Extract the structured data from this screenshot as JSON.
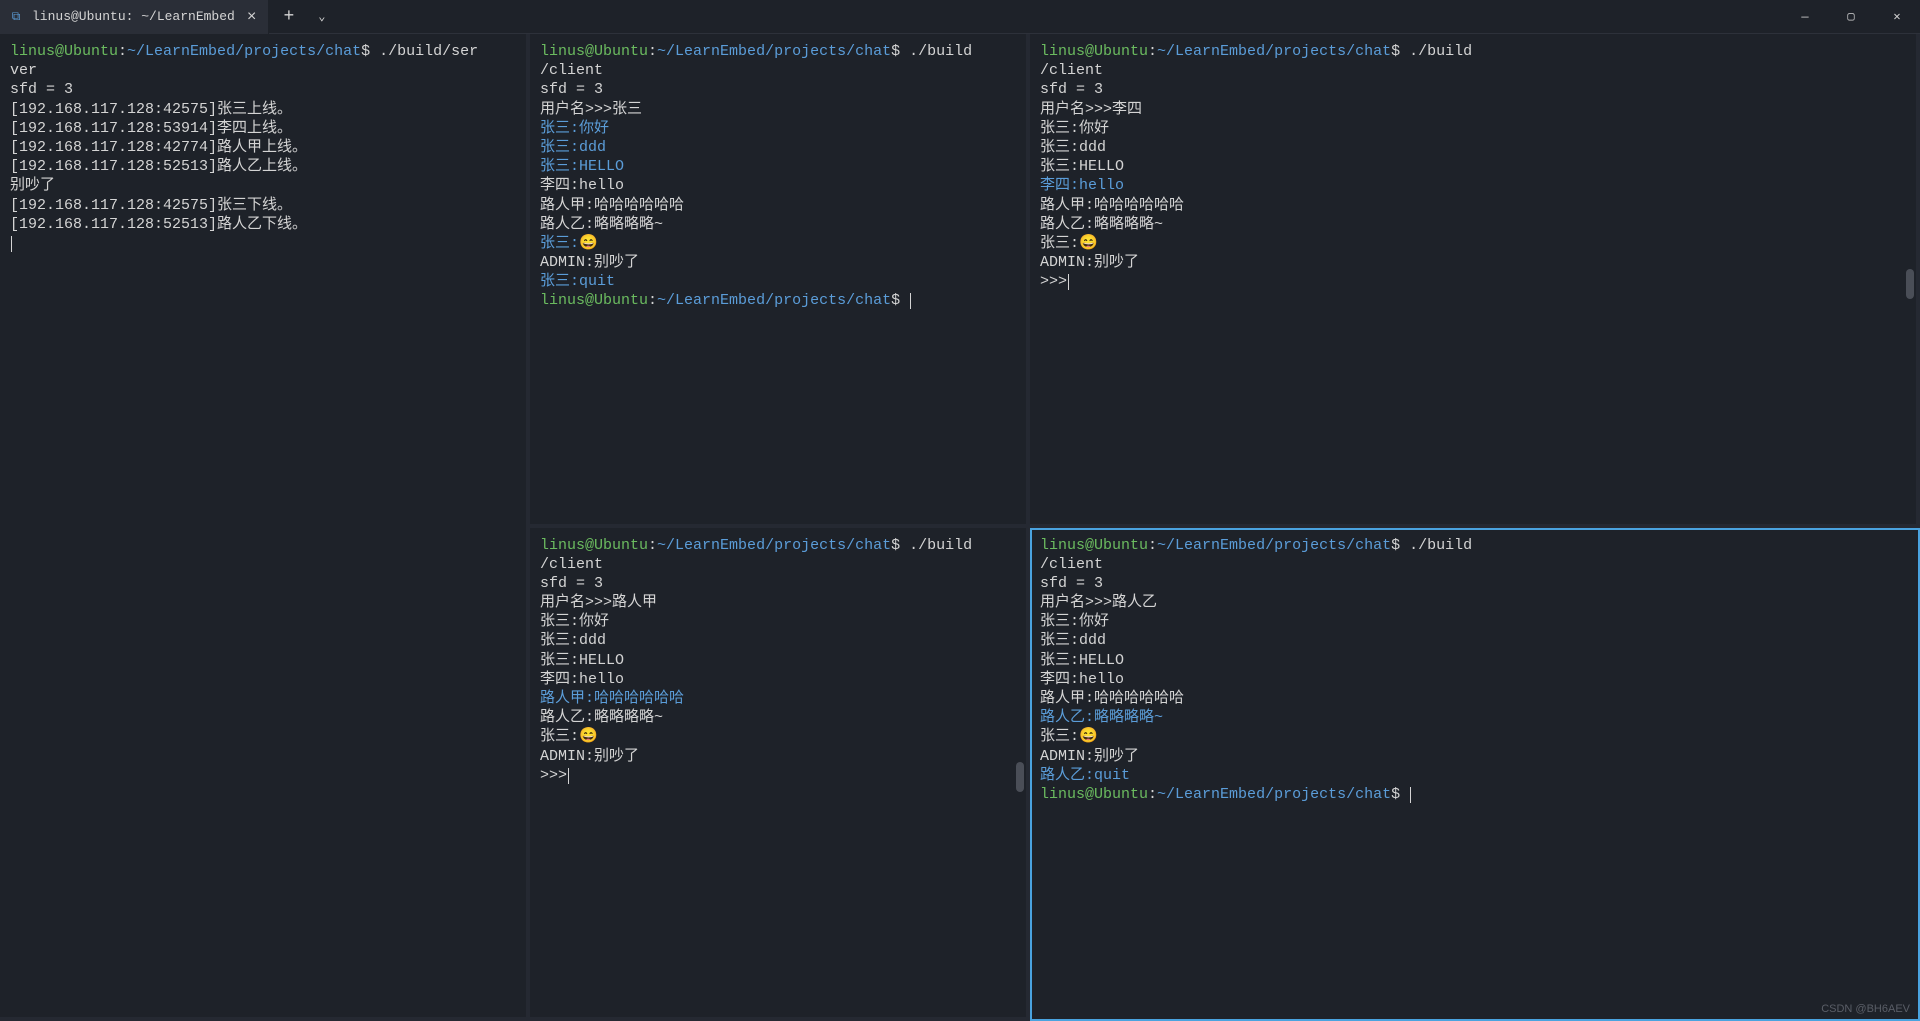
{
  "colors": {
    "bg": "#1e2229",
    "fg": "#d4d4d4",
    "prompt_user": "#6bbb5f",
    "prompt_path": "#5b9dd9",
    "self_msg": "#5b9dd9",
    "active_border": "#4aa3df",
    "scrollbar": "#4a4e57"
  },
  "titlebar": {
    "tab_title": "linus@Ubuntu: ~/LearnEmbed",
    "tab_icon": "⧉",
    "close": "×",
    "add": "+",
    "dropdown": "⌄",
    "min": "—",
    "max": "▢",
    "win_close": "✕"
  },
  "prompt": {
    "user": "linus@Ubuntu",
    "sep": ":",
    "path": "~/LearnEmbed/projects/chat",
    "dollar": "$"
  },
  "panes": [
    {
      "id": "p0",
      "command": "./build/server",
      "wrapped_cmd_split": [
        "./build/ser",
        "ver"
      ],
      "lines": [
        {
          "t": "plain",
          "text": "sfd = 3"
        },
        {
          "t": "plain",
          "text": "[192.168.117.128:42575]张三上线。"
        },
        {
          "t": "plain",
          "text": "[192.168.117.128:53914]李四上线。"
        },
        {
          "t": "plain",
          "text": "[192.168.117.128:42774]路人甲上线。"
        },
        {
          "t": "plain",
          "text": "[192.168.117.128:52513]路人乙上线。"
        },
        {
          "t": "plain",
          "text": "别吵了"
        },
        {
          "t": "plain",
          "text": "[192.168.117.128:42575]张三下线。"
        },
        {
          "t": "plain",
          "text": "[192.168.117.128:52513]路人乙下线。"
        }
      ],
      "trailing_cursor": true
    },
    {
      "id": "p1",
      "command": "./build/client",
      "wrapped_cmd_split": [
        "./build",
        "/client"
      ],
      "lines": [
        {
          "t": "plain",
          "text": "sfd = 3"
        },
        {
          "t": "plain",
          "text": "用户名>>>张三"
        },
        {
          "t": "self",
          "text": "张三:你好"
        },
        {
          "t": "self",
          "text": "张三:ddd"
        },
        {
          "t": "self",
          "text": "张三:HELLO"
        },
        {
          "t": "plain",
          "text": "李四:hello"
        },
        {
          "t": "plain",
          "text": "路人甲:哈哈哈哈哈哈"
        },
        {
          "t": "plain",
          "text": "路人乙:略略略略~"
        },
        {
          "t": "selfemoji",
          "prefix": "张三:",
          "emoji": "😄"
        },
        {
          "t": "plain",
          "text": "ADMIN:别吵了"
        },
        {
          "t": "self",
          "text": "张三:quit"
        }
      ],
      "final_prompt": true
    },
    {
      "id": "p2",
      "command": "./build/client",
      "wrapped_cmd_split": [
        "./build",
        "/client"
      ],
      "lines": [
        {
          "t": "plain",
          "text": "sfd = 3"
        },
        {
          "t": "plain",
          "text": "用户名>>>李四"
        },
        {
          "t": "plain",
          "text": "张三:你好"
        },
        {
          "t": "plain",
          "text": "张三:ddd"
        },
        {
          "t": "plain",
          "text": "张三:HELLO"
        },
        {
          "t": "self",
          "text": "李四:hello"
        },
        {
          "t": "plain",
          "text": "路人甲:哈哈哈哈哈哈"
        },
        {
          "t": "plain",
          "text": "路人乙:略略略略~"
        },
        {
          "t": "emoji",
          "prefix": "张三:",
          "emoji": "😄"
        },
        {
          "t": "plain",
          "text": "ADMIN:别吵了"
        },
        {
          "t": "input",
          "text": ">>>"
        }
      ],
      "scrollbar": true
    },
    {
      "id": "p3",
      "command": "./build/client",
      "wrapped_cmd_split": [
        "./build",
        "/client"
      ],
      "lines": [
        {
          "t": "plain",
          "text": "sfd = 3"
        },
        {
          "t": "plain",
          "text": "用户名>>>路人甲"
        },
        {
          "t": "plain",
          "text": "张三:你好"
        },
        {
          "t": "plain",
          "text": "张三:ddd"
        },
        {
          "t": "plain",
          "text": "张三:HELLO"
        },
        {
          "t": "plain",
          "text": "李四:hello"
        },
        {
          "t": "self",
          "text": "路人甲:哈哈哈哈哈哈"
        },
        {
          "t": "plain",
          "text": "路人乙:略略略略~"
        },
        {
          "t": "emoji",
          "prefix": "张三:",
          "emoji": "😄"
        },
        {
          "t": "plain",
          "text": "ADMIN:别吵了"
        },
        {
          "t": "input",
          "text": ">>>"
        }
      ],
      "scrollbar": true
    },
    {
      "id": "p4",
      "command": "./build/client",
      "wrapped_cmd_split": [
        "./build",
        "/client"
      ],
      "active": true,
      "lines": [
        {
          "t": "plain",
          "text": "sfd = 3"
        },
        {
          "t": "plain",
          "text": "用户名>>>路人乙"
        },
        {
          "t": "plain",
          "text": "张三:你好"
        },
        {
          "t": "plain",
          "text": "张三:ddd"
        },
        {
          "t": "plain",
          "text": "张三:HELLO"
        },
        {
          "t": "plain",
          "text": "李四:hello"
        },
        {
          "t": "plain",
          "text": "路人甲:哈哈哈哈哈哈"
        },
        {
          "t": "self",
          "text": "路人乙:略略略略~"
        },
        {
          "t": "emoji",
          "prefix": "张三:",
          "emoji": "😄"
        },
        {
          "t": "plain",
          "text": "ADMIN:别吵了"
        },
        {
          "t": "self",
          "text": "路人乙:quit"
        }
      ],
      "final_prompt": true
    }
  ],
  "watermark": "CSDN @BH6AEV"
}
